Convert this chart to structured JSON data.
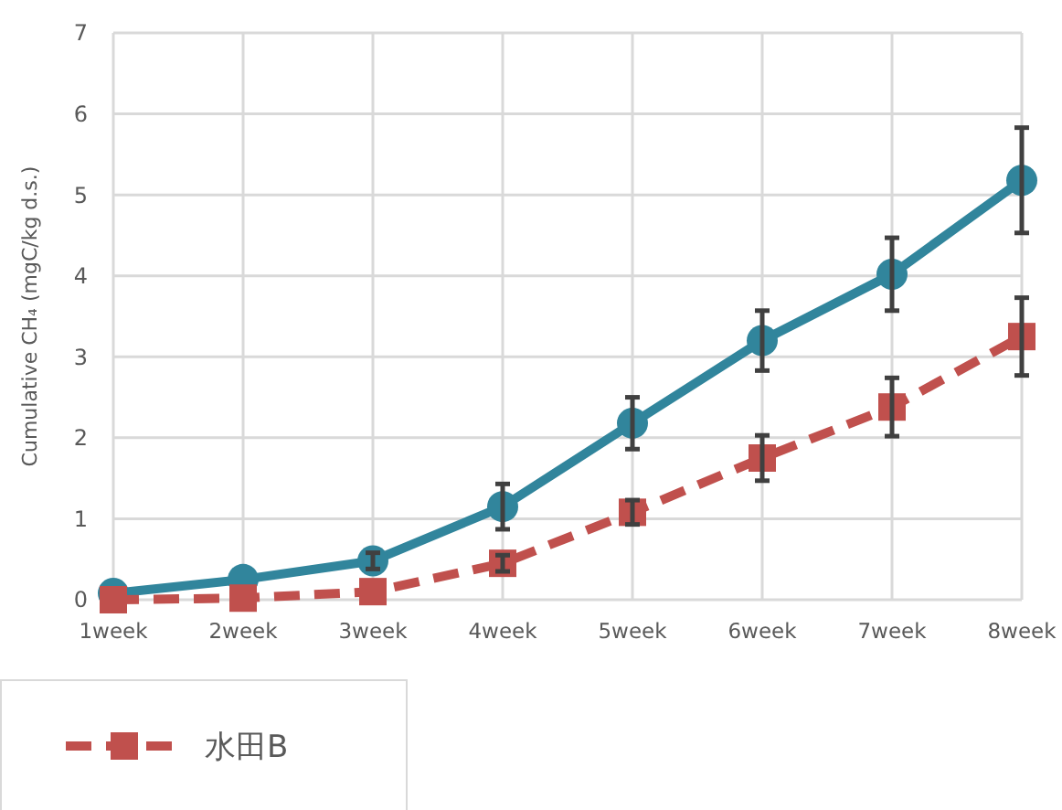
{
  "chart_data": {
    "type": "line",
    "ylabel": "Cumulative CH₄ (mgC/kg d.s.)",
    "categories": [
      "1week",
      "2week",
      "3week",
      "4week",
      "5week",
      "6week",
      "7week",
      "8week"
    ],
    "ylim": [
      0,
      7
    ],
    "yticks": [
      0,
      1,
      2,
      3,
      4,
      5,
      6,
      7
    ],
    "grid": true,
    "legend": "bottom left",
    "series": [
      {
        "color": "#31859c",
        "marker": "circle",
        "line_style": "solid",
        "values": [
          0.08,
          0.25,
          0.48,
          1.15,
          2.18,
          3.2,
          4.02,
          5.18
        ],
        "errors": [
          null,
          null,
          0.1,
          0.28,
          0.32,
          0.37,
          0.45,
          0.65
        ]
      },
      {
        "name": "水田B",
        "color": "#c0504d",
        "marker": "square",
        "line_style": "dashed",
        "values": [
          0.0,
          0.02,
          0.1,
          0.45,
          1.08,
          1.75,
          2.38,
          3.25
        ],
        "errors": [
          null,
          null,
          null,
          0.1,
          0.15,
          0.28,
          0.36,
          0.48
        ]
      }
    ]
  }
}
